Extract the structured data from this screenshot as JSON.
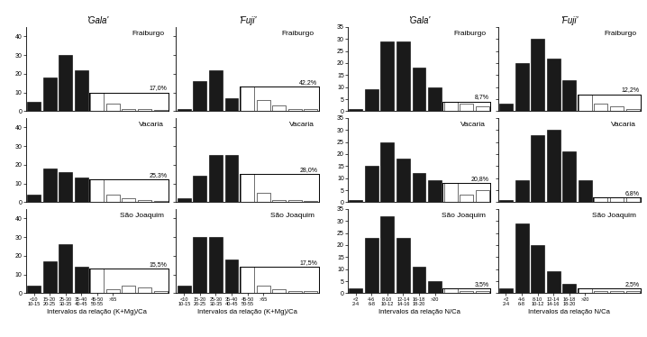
{
  "chart_data": [
    {
      "type": "bar",
      "title": "'Gala'",
      "subtitle": "Fraiburgo",
      "categories": [
        "<10\n10-15",
        "15-20\n20-25",
        "25-30\n30-35",
        "35-40\n40-45",
        "45-50\n50-55",
        ">55",
        null,
        null,
        null
      ],
      "series": [
        {
          "color": "#1a1a1a",
          "values": [
            5,
            18,
            30,
            22,
            0,
            0,
            0,
            0,
            0
          ]
        },
        {
          "color": "#ffffff",
          "values": [
            0,
            0,
            0,
            0,
            10,
            4,
            1,
            1,
            0.5
          ]
        }
      ],
      "ylim": [
        0,
        45
      ],
      "yticks": [
        0,
        10,
        20,
        30,
        40
      ],
      "annotations": [
        {
          "text": "17,0%",
          "y": 10
        }
      ],
      "tick_labels": "y"
    },
    {
      "type": "bar",
      "title": "'Fuji'",
      "subtitle": "Fraiburgo",
      "categories": [
        "<10\n10-15",
        "15-20\n20-25",
        "25-30\n30-35",
        "35-40\n40-45",
        "45-50\n50-55",
        ">55",
        null,
        null,
        null
      ],
      "series": [
        {
          "color": "#1a1a1a",
          "values": [
            1,
            16,
            22,
            7,
            0,
            0,
            0,
            0,
            0
          ]
        },
        {
          "color": "#ffffff",
          "values": [
            0,
            0,
            0,
            0,
            13,
            6,
            3,
            1,
            1
          ]
        }
      ],
      "ylim": [
        0,
        45
      ],
      "yticks": [
        0,
        10,
        20,
        30,
        40
      ],
      "annotations": [
        {
          "text": "42,2%",
          "y": 13
        }
      ],
      "tick_labels": false
    },
    {
      "type": "bar",
      "title": "'Gala'",
      "subtitle": "Fraiburgo",
      "categories": [
        "<2\n2-4",
        "4-6\n6-8",
        "8-10\n10-12",
        "12-14\n14-16",
        "16-18\n18-20",
        ">20",
        null,
        null,
        null
      ],
      "series": [
        {
          "color": "#1a1a1a",
          "values": [
            1,
            9,
            29,
            29,
            18,
            10,
            0,
            0,
            0
          ]
        },
        {
          "color": "#ffffff",
          "values": [
            0,
            0,
            0,
            0,
            0,
            0,
            4,
            3,
            2
          ]
        }
      ],
      "ylim": [
        0,
        35
      ],
      "yticks": [
        0,
        5,
        10,
        15,
        20,
        25,
        30,
        35
      ],
      "annotations": [
        {
          "text": "8,7%",
          "y": 4
        }
      ],
      "tick_labels": "y"
    },
    {
      "type": "bar",
      "title": "'Fuji'",
      "subtitle": "Fraiburgo",
      "categories": [
        "<2\n2-4",
        "4-6\n6-8",
        "8-10\n10-12",
        "12-14\n14-16",
        "16-18\n18-20",
        ">20",
        null,
        null,
        null
      ],
      "series": [
        {
          "color": "#1a1a1a",
          "values": [
            3,
            20,
            30,
            22,
            13,
            0,
            0,
            0,
            0
          ]
        },
        {
          "color": "#ffffff",
          "values": [
            0,
            0,
            0,
            0,
            0,
            7,
            3,
            2,
            1
          ]
        }
      ],
      "ylim": [
        0,
        35
      ],
      "yticks": [
        0,
        5,
        10,
        15,
        20,
        25,
        30,
        35
      ],
      "annotations": [
        {
          "text": "12,2%",
          "y": 7
        }
      ],
      "tick_labels": false
    },
    {
      "type": "bar",
      "subtitle": "Vacaria",
      "categories": [
        "<10\n10-15",
        "15-20\n20-25",
        "25-30\n30-35",
        "35-40\n40-45",
        "45-50\n50-55",
        ">55",
        null,
        null,
        null
      ],
      "series": [
        {
          "color": "#1a1a1a",
          "values": [
            4,
            18,
            16,
            13,
            0,
            0,
            0,
            0,
            0
          ]
        },
        {
          "color": "#ffffff",
          "values": [
            0,
            0,
            0,
            0,
            12,
            4,
            2,
            1,
            0.5
          ]
        }
      ],
      "ylim": [
        0,
        45
      ],
      "yticks": [
        0,
        10,
        20,
        30,
        40
      ],
      "annotations": [
        {
          "text": "25,3%",
          "y": 12
        }
      ],
      "tick_labels": "y"
    },
    {
      "type": "bar",
      "subtitle": "Vacaria",
      "categories": [
        "<10\n10-15",
        "15-20\n20-25",
        "25-30\n30-35",
        "35-40\n40-45",
        "45-50\n50-55",
        ">55",
        null,
        null,
        null
      ],
      "series": [
        {
          "color": "#1a1a1a",
          "values": [
            2,
            14,
            25,
            25,
            0,
            0,
            0,
            0,
            0
          ]
        },
        {
          "color": "#ffffff",
          "values": [
            0,
            0,
            0,
            0,
            15,
            5,
            1,
            1,
            0.5
          ]
        }
      ],
      "ylim": [
        0,
        45
      ],
      "yticks": [
        0,
        10,
        20,
        30,
        40
      ],
      "annotations": [
        {
          "text": "28,0%",
          "y": 15
        }
      ],
      "tick_labels": false
    },
    {
      "type": "bar",
      "subtitle": "Vacaria",
      "categories": [
        "<2\n2-4",
        "4-6\n6-8",
        "8-10\n10-12",
        "12-14\n14-16",
        "16-18\n18-20",
        ">20",
        null,
        null,
        null
      ],
      "series": [
        {
          "color": "#1a1a1a",
          "values": [
            1,
            15,
            25,
            18,
            12,
            9,
            0,
            0,
            0
          ]
        },
        {
          "color": "#ffffff",
          "values": [
            0,
            0,
            0,
            0,
            0,
            0,
            8,
            3,
            5
          ]
        }
      ],
      "ylim": [
        0,
        35
      ],
      "yticks": [
        0,
        5,
        10,
        15,
        20,
        25,
        30,
        35
      ],
      "annotations": [
        {
          "text": "20,8%",
          "y": 8
        }
      ],
      "tick_labels": "y"
    },
    {
      "type": "bar",
      "subtitle": "Vacaria",
      "categories": [
        "<2\n2-4",
        "4-6\n6-8",
        "8-10\n10-12",
        "12-14\n14-16",
        "16-18\n18-20",
        ">20",
        null,
        null,
        null
      ],
      "series": [
        {
          "color": "#1a1a1a",
          "values": [
            1,
            9,
            28,
            30,
            21,
            9,
            0,
            0,
            0
          ]
        },
        {
          "color": "#ffffff",
          "values": [
            0,
            0,
            0,
            0,
            0,
            0,
            2,
            2,
            2
          ]
        }
      ],
      "ylim": [
        0,
        35
      ],
      "yticks": [
        0,
        5,
        10,
        15,
        20,
        25,
        30,
        35
      ],
      "annotations": [
        {
          "text": "6,8%",
          "y": 2
        }
      ],
      "tick_labels": false
    },
    {
      "type": "bar",
      "subtitle": "São Joaquim",
      "xlabel": "Intervalos da relação (K+Mg)/Ca",
      "categories": [
        "<10\n10-15",
        "15-20\n20-25",
        "25-30\n30-35",
        "35-40\n40-45",
        "45-50\n50-55",
        ">55",
        null,
        null,
        null
      ],
      "series": [
        {
          "color": "#1a1a1a",
          "values": [
            4,
            17,
            26,
            14,
            0,
            0,
            0,
            0,
            0
          ]
        },
        {
          "color": "#ffffff",
          "values": [
            0,
            0,
            0,
            0,
            13,
            2,
            4,
            3,
            1
          ]
        }
      ],
      "ylim": [
        0,
        45
      ],
      "yticks": [
        0,
        10,
        20,
        30,
        40
      ],
      "annotations": [
        {
          "text": "15,5%",
          "y": 13
        }
      ]
    },
    {
      "type": "bar",
      "subtitle": "São Joaquim",
      "xlabel": "Intervalos da relação (K+Mg)/Ca",
      "categories": [
        "<10\n10-15",
        "15-20\n20-25",
        "25-30\n30-35",
        "35-40\n40-45",
        "45-50\n50-55",
        ">55",
        null,
        null,
        null
      ],
      "series": [
        {
          "color": "#1a1a1a",
          "values": [
            4,
            30,
            30,
            18,
            0,
            0,
            0,
            0,
            0
          ]
        },
        {
          "color": "#ffffff",
          "values": [
            0,
            0,
            0,
            0,
            14,
            4,
            2,
            1,
            1
          ]
        }
      ],
      "ylim": [
        0,
        45
      ],
      "yticks": [
        0,
        10,
        20,
        30,
        40
      ],
      "annotations": [
        {
          "text": "17,5%",
          "y": 14
        }
      ],
      "tick_labels": "x"
    },
    {
      "type": "bar",
      "subtitle": "São Joaquim",
      "xlabel": "Intervalos da relação N/Ca",
      "categories": [
        "<2\n2-4",
        "4-6\n6-8",
        "8-10\n10-12",
        "12-14\n14-16",
        "16-18\n18-20",
        ">20",
        null,
        null,
        null
      ],
      "series": [
        {
          "color": "#1a1a1a",
          "values": [
            2,
            23,
            32,
            23,
            11,
            5,
            0,
            0,
            0
          ]
        },
        {
          "color": "#ffffff",
          "values": [
            0,
            0,
            0,
            0,
            0,
            0,
            2,
            1,
            1
          ]
        }
      ],
      "ylim": [
        0,
        35
      ],
      "yticks": [
        0,
        5,
        10,
        15,
        20,
        25,
        30,
        35
      ],
      "annotations": [
        {
          "text": "3,5%",
          "y": 2
        }
      ]
    },
    {
      "type": "bar",
      "subtitle": "São Joaquim",
      "xlabel": "Intervalos da relação N/Ca",
      "categories": [
        "<2\n2-4",
        "4-6\n6-8",
        "8-10\n10-12",
        "12-14\n14-16",
        "16-18\n18-20",
        ">20",
        null,
        null,
        null
      ],
      "series": [
        {
          "color": "#1a1a1a",
          "values": [
            2,
            29,
            20,
            9,
            4,
            0,
            0,
            0,
            0
          ]
        },
        {
          "color": "#ffffff",
          "values": [
            0,
            0,
            0,
            0,
            0,
            2,
            1,
            1,
            1
          ]
        }
      ],
      "ylim": [
        0,
        35
      ],
      "yticks": [
        0,
        5,
        10,
        15,
        20,
        25,
        30,
        35
      ],
      "annotations": [
        {
          "text": "2,5%",
          "y": 2
        }
      ],
      "tick_labels": "x"
    }
  ]
}
